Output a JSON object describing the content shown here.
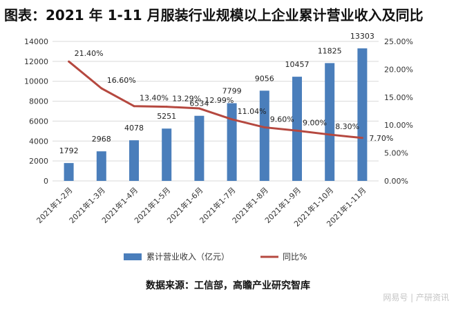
{
  "chart_data": {
    "type": "bar",
    "title": "图表：2021 年 1-11 月服装行业规模以上企业累计营业收入及同比",
    "categories": [
      "2021年1-2月",
      "2021年1-3月",
      "2021年1-4月",
      "2021年1-5月",
      "2021年1-6月",
      "2021年1-7月",
      "2021年1-8月",
      "2021年1-9月",
      "2021年1-10月",
      "2021年1-11月"
    ],
    "series": [
      {
        "name": "累计营业收入（亿元）",
        "type": "bar",
        "axis": "left",
        "color": "#4a7ebb",
        "values": [
          1792,
          2968,
          4078,
          5251,
          6534,
          7799,
          9056,
          10457,
          11825,
          13303
        ],
        "labels": [
          "1792",
          "2968",
          "4078",
          "5251",
          "6534",
          "7799",
          "9056",
          "10457",
          "11825",
          "13303"
        ]
      },
      {
        "name": "同比%",
        "type": "line",
        "axis": "right",
        "color": "#b5483f",
        "values": [
          21.4,
          16.6,
          13.4,
          13.29,
          12.99,
          11.04,
          9.6,
          9.0,
          8.3,
          7.7
        ],
        "labels": [
          "21.40%",
          "16.60%",
          "13.40%",
          "13.29%",
          "12.99%",
          "11.04%",
          "9.60%",
          "9.00%",
          "8.30%",
          "7.70%"
        ]
      }
    ],
    "y_left": {
      "min": 0,
      "max": 14000,
      "step": 2000,
      "ticks": [
        "0",
        "2000",
        "4000",
        "6000",
        "8000",
        "10000",
        "12000",
        "14000"
      ]
    },
    "y_right": {
      "min": 0,
      "max": 25,
      "step": 5,
      "ticks": [
        "0.00%",
        "5.00%",
        "10.00%",
        "15.00%",
        "20.00%",
        "25.00%"
      ]
    },
    "grid": true,
    "legend_position": "bottom"
  },
  "source_text": "数据来源：工信部，高瞻产业研究智库",
  "watermark_text": "网易号 | 产研资讯"
}
